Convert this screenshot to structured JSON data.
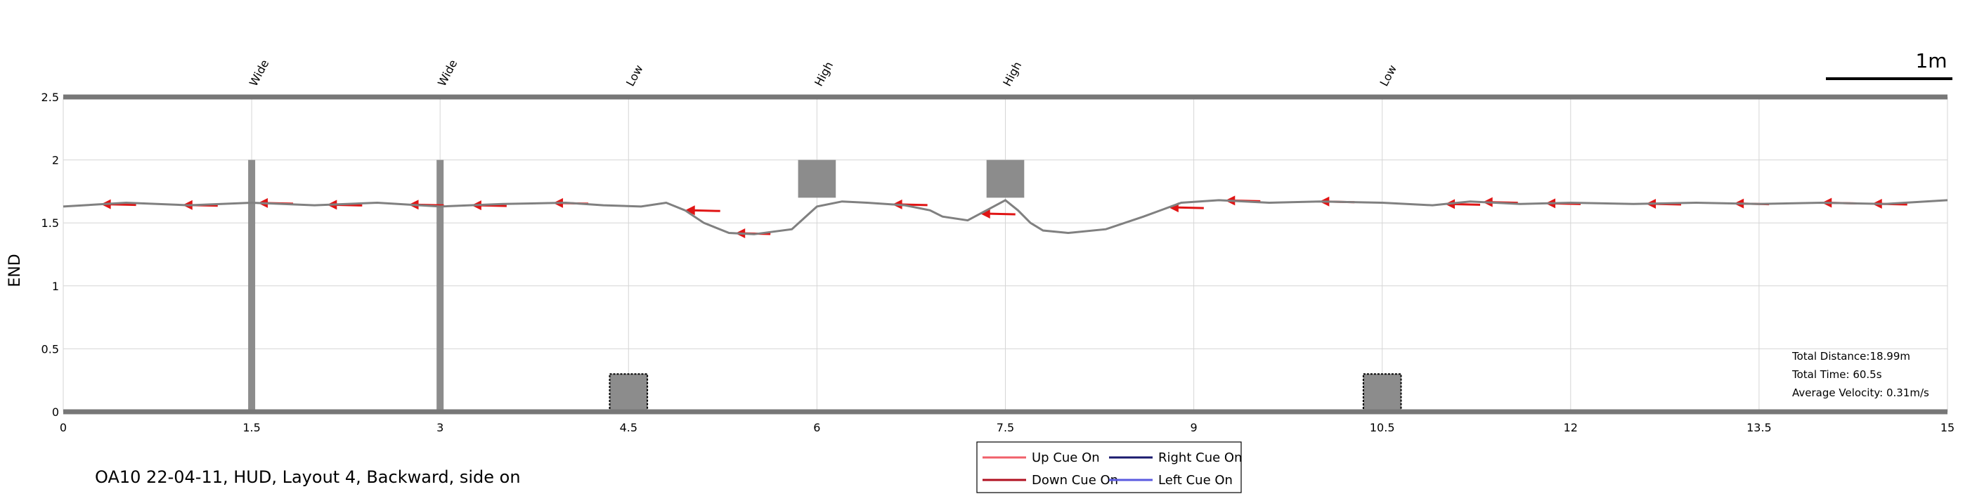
{
  "chart_data": {
    "type": "line",
    "title": "",
    "xlabel": "",
    "ylabel": "END",
    "xlim": [
      0,
      15
    ],
    "ylim": [
      0,
      2.5
    ],
    "x_ticks": [
      "0",
      "1.5",
      "3",
      "4.5",
      "6",
      "7.5",
      "9",
      "10.5",
      "12",
      "13.5",
      "15"
    ],
    "y_ticks": [
      "0",
      "0.5",
      "1",
      "1.5",
      "2",
      "2.5"
    ],
    "grid": true,
    "scale_bar": "1m",
    "legend": {
      "placement": "bottom-center",
      "entries": [
        {
          "label": "Up Cue On",
          "color": "#f0606a"
        },
        {
          "label": "Right Cue On",
          "color": "#1a1a6e"
        },
        {
          "label": "Down Cue On",
          "color": "#b01020"
        },
        {
          "label": "Left Cue On",
          "color": "#5a5ae0"
        }
      ]
    },
    "obstacles": [
      {
        "label": "Wide",
        "x": 1.5,
        "kind": "pole",
        "y_range": [
          0,
          2
        ]
      },
      {
        "label": "Wide",
        "x": 3.0,
        "kind": "pole",
        "y_range": [
          0,
          2
        ]
      },
      {
        "label": "Low",
        "x": 4.5,
        "kind": "block",
        "x_range": [
          4.35,
          4.65
        ],
        "y_range": [
          0,
          0.3
        ]
      },
      {
        "label": "High",
        "x": 6.0,
        "kind": "block",
        "x_range": [
          5.85,
          6.15
        ],
        "y_range": [
          1.7,
          2.0
        ]
      },
      {
        "label": "High",
        "x": 7.5,
        "kind": "block",
        "x_range": [
          7.35,
          7.65
        ],
        "y_range": [
          1.7,
          2.0
        ]
      },
      {
        "label": "Low",
        "x": 10.5,
        "kind": "block",
        "x_range": [
          10.35,
          10.65
        ],
        "y_range": [
          0,
          0.3
        ]
      }
    ],
    "series": [
      {
        "color": "#808080",
        "x": [
          0,
          0.5,
          1.0,
          1.5,
          2.0,
          2.5,
          3.0,
          3.5,
          4.0,
          4.3,
          4.6,
          4.8,
          4.95,
          5.1,
          5.3,
          5.5,
          5.8,
          6.0,
          6.2,
          6.4,
          6.7,
          6.9,
          7.0,
          7.2,
          7.35,
          7.5,
          7.6,
          7.7,
          7.8,
          8.0,
          8.3,
          8.6,
          8.9,
          9.2,
          9.6,
          10.0,
          10.5,
          10.9,
          11.2,
          11.6,
          12.0,
          12.5,
          13.0,
          13.5,
          14.0,
          14.5,
          15.0
        ],
        "y": [
          1.63,
          1.66,
          1.64,
          1.66,
          1.64,
          1.66,
          1.63,
          1.65,
          1.66,
          1.64,
          1.63,
          1.66,
          1.6,
          1.5,
          1.42,
          1.41,
          1.45,
          1.63,
          1.67,
          1.66,
          1.64,
          1.6,
          1.55,
          1.52,
          1.6,
          1.68,
          1.6,
          1.5,
          1.44,
          1.42,
          1.45,
          1.55,
          1.66,
          1.68,
          1.66,
          1.67,
          1.66,
          1.64,
          1.67,
          1.65,
          1.66,
          1.65,
          1.66,
          1.65,
          1.66,
          1.65,
          1.68
        ]
      }
    ],
    "stats": [
      "Total Distance:18.99m",
      "Total Time: 60.5s",
      "Average Velocity: 0.31m/s"
    ]
  },
  "caption": "OA10 22-04-11, HUD, Layout 4, Backward, side on"
}
